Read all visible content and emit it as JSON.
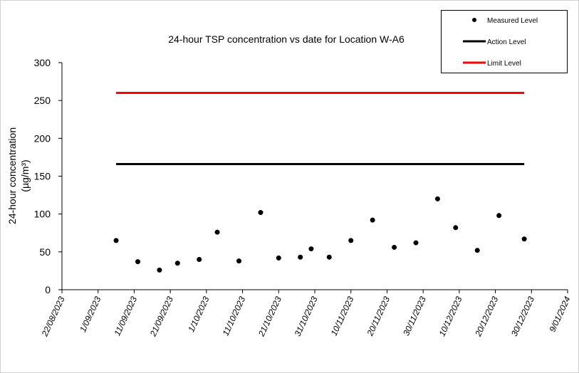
{
  "chart_data": {
    "type": "scatter",
    "title": "24-hour TSP concentration vs date for Location W-A6",
    "y_label": [
      "24-hour concentration",
      "(µg/m³)"
    ],
    "xlim": [
      "22/08/2023",
      "9/01/2024"
    ],
    "xticks": [
      "22/08/2023",
      "1/09/2023",
      "11/09/2023",
      "21/09/2023",
      "1/10/2023",
      "11/10/2023",
      "21/10/2023",
      "31/10/2023",
      "10/11/2023",
      "20/11/2023",
      "30/11/2023",
      "10/12/2023",
      "20/12/2023",
      "30/12/2023",
      "9/01/2024"
    ],
    "ylim": [
      0,
      300
    ],
    "yticks": [
      0,
      50,
      100,
      150,
      200,
      250,
      300
    ],
    "legend": "top-right",
    "series": [
      {
        "name": "Measured Level",
        "mode": "markers",
        "color": "#000000",
        "x": [
          "6/09/2023",
          "12/09/2023",
          "18/09/2023",
          "23/09/2023",
          "29/09/2023",
          "4/10/2023",
          "10/10/2023",
          "16/10/2023",
          "21/10/2023",
          "27/10/2023",
          "30/10/2023",
          "4/11/2023",
          "10/11/2023",
          "16/11/2023",
          "22/11/2023",
          "28/11/2023",
          "4/12/2023",
          "9/12/2023",
          "15/12/2023",
          "21/12/2023",
          "28/12/2023"
        ],
        "values": [
          65,
          37,
          26,
          35,
          40,
          76,
          38,
          102,
          42,
          43,
          54,
          43,
          65,
          92,
          56,
          62,
          120,
          82,
          52,
          98,
          67
        ]
      },
      {
        "name": "Action Level",
        "mode": "line",
        "color": "#000000",
        "x": [
          "6/09/2023",
          "28/12/2023"
        ],
        "values": [
          166,
          166
        ]
      },
      {
        "name": "Limit Level",
        "mode": "line",
        "color": "#ff0000",
        "x": [
          "6/09/2023",
          "28/12/2023"
        ],
        "values": [
          260,
          260
        ]
      }
    ]
  }
}
